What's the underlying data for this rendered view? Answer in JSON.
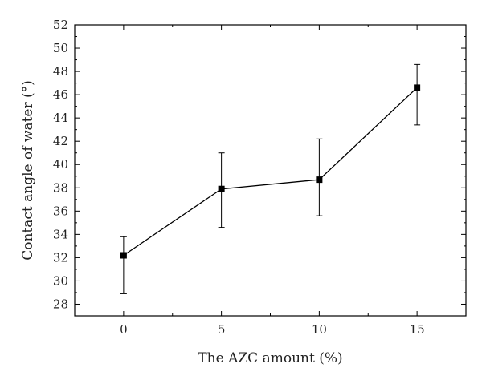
{
  "chart_data": {
    "type": "line",
    "title": "",
    "xlabel": "The AZC amount (%)",
    "ylabel": "Contact angle of water (°)",
    "xlim": [
      -2.5,
      17.5
    ],
    "ylim": [
      27,
      52
    ],
    "x_ticks": [
      0,
      5,
      10,
      15
    ],
    "y_ticks": [
      28,
      30,
      32,
      34,
      36,
      38,
      40,
      42,
      44,
      46,
      48,
      50,
      52
    ],
    "grid": false,
    "legend": "none",
    "colors": {
      "line": "#000000",
      "marker": "#000000",
      "axis": "#000000"
    },
    "series": [
      {
        "x": [
          0,
          5,
          10,
          15
        ],
        "y": [
          32.2,
          37.9,
          38.7,
          46.6
        ],
        "error_upper": [
          33.8,
          41.0,
          42.2,
          48.6
        ],
        "error_lower": [
          28.9,
          34.6,
          35.6,
          43.4
        ],
        "marker": "square"
      }
    ]
  }
}
